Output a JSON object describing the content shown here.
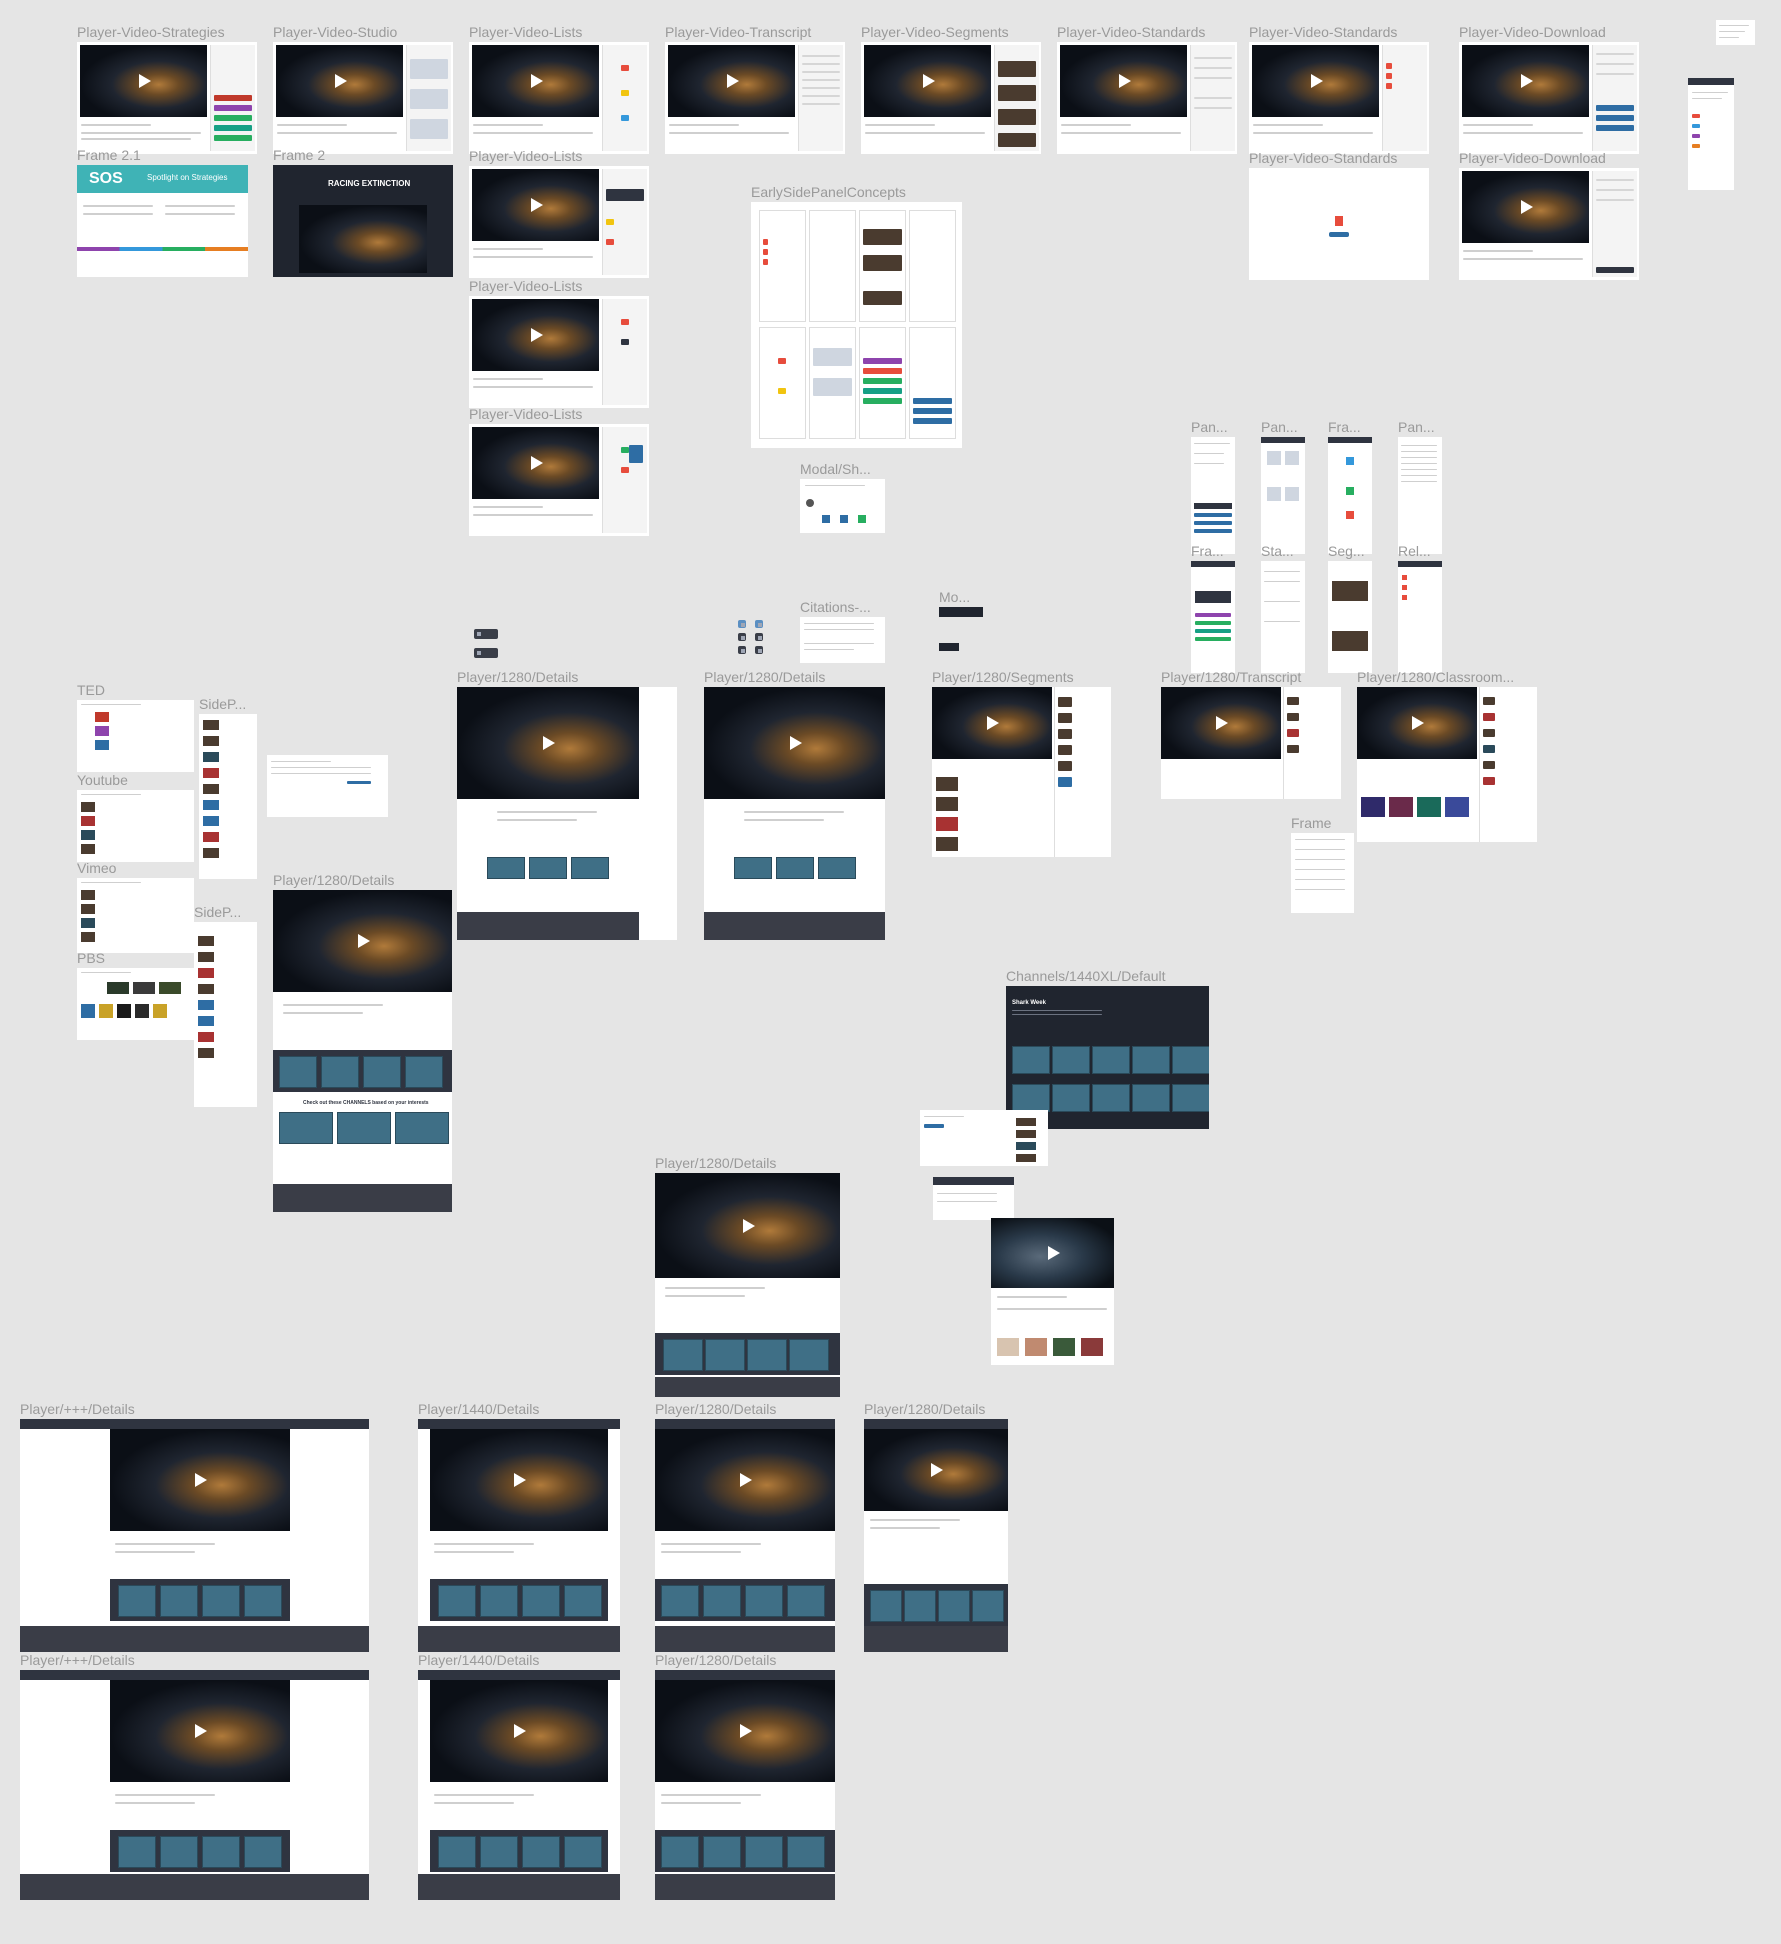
{
  "app": {
    "name": "Design canvas"
  },
  "frames": [
    {
      "label": "Player-Video-Strategies"
    },
    {
      "label": "Player-Video-Studio"
    },
    {
      "label": "Player-Video-Lists"
    },
    {
      "label": "Player-Video-Transcript"
    },
    {
      "label": "Player-Video-Segments"
    },
    {
      "label": "Player-Video-Standards"
    },
    {
      "label": "Player-Video-Standards"
    },
    {
      "label": "Player-Video-Download"
    },
    {
      "label": "Frame 2.1"
    },
    {
      "label": "Frame 2"
    },
    {
      "label": "Player-Video-Lists"
    },
    {
      "label": "Player-Video-Standards"
    },
    {
      "label": "Player-Video-Download"
    },
    {
      "label": "EarlySidePanelConcepts"
    },
    {
      "label": "Player-Video-Lists"
    },
    {
      "label": "Player-Video-Lists"
    },
    {
      "label": "Modal/Sh..."
    },
    {
      "label": "Pan..."
    },
    {
      "label": "Pan..."
    },
    {
      "label": "Fra..."
    },
    {
      "label": "Pan..."
    },
    {
      "label": "Fra..."
    },
    {
      "label": "Sta..."
    },
    {
      "label": "Seg..."
    },
    {
      "label": "Rel..."
    },
    {
      "label": "Mo..."
    },
    {
      "label": "Citations-..."
    },
    {
      "label": "TED"
    },
    {
      "label": "SideP..."
    },
    {
      "label": "Player/1280/Details"
    },
    {
      "label": "Player/1280/Details"
    },
    {
      "label": "Player/1280/Segments"
    },
    {
      "label": "Player/1280/Transcript"
    },
    {
      "label": "Player/1280/Classroom..."
    },
    {
      "label": "Youtube"
    },
    {
      "label": "Frame"
    },
    {
      "label": "Vimeo"
    },
    {
      "label": "Player/1280/Details"
    },
    {
      "label": "SideP..."
    },
    {
      "label": "PBS"
    },
    {
      "label": "Channels/1440XL/Default"
    },
    {
      "label": "Player/1280/Details"
    },
    {
      "label": "Player/+++/Details"
    },
    {
      "label": "Player/1440/Details"
    },
    {
      "label": "Player/1280/Details"
    },
    {
      "label": "Player/1280/Details"
    },
    {
      "label": "Player/+++/Details"
    },
    {
      "label": "Player/1440/Details"
    },
    {
      "label": "Player/1280/Details"
    }
  ],
  "frame_texts": {
    "sos_logo": "SOS",
    "spotlight_title": "Spotlight on Strategies",
    "racing_title": "RACING EXTINCTION",
    "shark_title": "Shark Week",
    "channels_banner": "Check out these CHANNELS based on your interests"
  }
}
